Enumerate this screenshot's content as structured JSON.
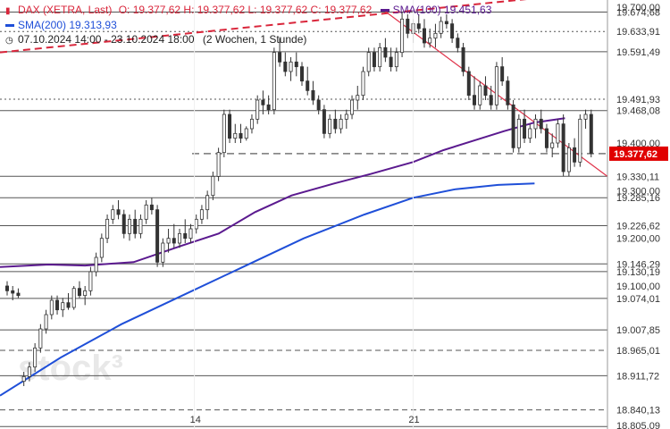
{
  "header": {
    "instrument_line": "DAX (XETRA, Last)",
    "ohlc": "O: 19.377,62  H: 19.377,62  L: 19.377,62  C: 19.377,62",
    "sma100_label": "SMA(100)",
    "sma100_value": "19.451,63",
    "sma200_label": "SMA(200)",
    "sma200_value": "19.313,93",
    "period": "07.10.2024 14:00 - 23.10.2024 18:00",
    "range": "(2 Wochen, 1 Stunde)"
  },
  "colors": {
    "bg": "#ffffff",
    "candle": "#333333",
    "sma100": "#5b1a8f",
    "sma200": "#1f4fd8",
    "trend_dashed": "#d9263b",
    "trend_solid": "#e0334a",
    "current_price": "#e00000",
    "level_line": "#555555"
  },
  "chart_data": {
    "type": "candlestick",
    "ylim": [
      18800,
      19700
    ],
    "x_ticks": [
      "14",
      "21"
    ],
    "y_axis_labels": [
      "19.700,00",
      "19.674,68",
      "19.633,91",
      "19.591,49",
      "19.491,93",
      "19.468,08",
      "19.400,00",
      "19.377,62",
      "19.330,11",
      "19.300,00",
      "19.285,16",
      "19.226,62",
      "19.200,00",
      "19.146,29",
      "19.130,19",
      "19.100,00",
      "19.074,01",
      "19.007,85",
      "18.965,01",
      "18.911,72",
      "18.840,13",
      "18.805,09"
    ],
    "current_price": 19377.62,
    "current_price_label": "19.377,62",
    "levels": [
      {
        "value": 19674.68,
        "style": "solid"
      },
      {
        "value": 19633.91,
        "style": "dotted"
      },
      {
        "value": 19591.49,
        "style": "solid"
      },
      {
        "value": 19491.93,
        "style": "dotted"
      },
      {
        "value": 19468.08,
        "style": "solid"
      },
      {
        "value": 19330.11,
        "style": "solid"
      },
      {
        "value": 19285.16,
        "style": "solid"
      },
      {
        "value": 19226.62,
        "style": "solid"
      },
      {
        "value": 19146.29,
        "style": "solid"
      },
      {
        "value": 19130.19,
        "style": "solid"
      },
      {
        "value": 19074.01,
        "style": "solid"
      },
      {
        "value": 19007.85,
        "style": "solid"
      },
      {
        "value": 18965.01,
        "style": "dashed"
      },
      {
        "value": 18911.72,
        "style": "solid"
      },
      {
        "value": 18840.13,
        "style": "dashed"
      },
      {
        "value": 18805.09,
        "style": "solid"
      }
    ],
    "candles": [
      [
        19100,
        19110,
        19080,
        19090
      ],
      [
        19090,
        19100,
        19070,
        19085
      ],
      [
        19085,
        19095,
        19075,
        19080
      ],
      [
        18900,
        18920,
        18890,
        18910
      ],
      [
        18910,
        18940,
        18900,
        18930
      ],
      [
        18930,
        18980,
        18920,
        18970
      ],
      [
        18970,
        19020,
        18960,
        19010
      ],
      [
        19010,
        19050,
        19000,
        19040
      ],
      [
        19040,
        19080,
        19030,
        19070
      ],
      [
        19070,
        19080,
        19040,
        19050
      ],
      [
        19050,
        19075,
        19035,
        19065
      ],
      [
        19065,
        19085,
        19050,
        19055
      ],
      [
        19055,
        19100,
        19050,
        19095
      ],
      [
        19095,
        19110,
        19075,
        19080
      ],
      [
        19080,
        19100,
        19060,
        19090
      ],
      [
        19090,
        19140,
        19080,
        19130
      ],
      [
        19130,
        19170,
        19120,
        19160
      ],
      [
        19160,
        19210,
        19150,
        19200
      ],
      [
        19200,
        19250,
        19190,
        19240
      ],
      [
        19240,
        19270,
        19230,
        19260
      ],
      [
        19260,
        19280,
        19240,
        19250
      ],
      [
        19250,
        19260,
        19200,
        19210
      ],
      [
        19210,
        19250,
        19195,
        19240
      ],
      [
        19240,
        19260,
        19200,
        19210
      ],
      [
        19210,
        19250,
        19200,
        19240
      ],
      [
        19240,
        19280,
        19230,
        19270
      ],
      [
        19270,
        19285,
        19250,
        19260
      ],
      [
        19260,
        19270,
        19140,
        19150
      ],
      [
        19150,
        19200,
        19140,
        19190
      ],
      [
        19190,
        19220,
        19170,
        19200
      ],
      [
        19200,
        19230,
        19180,
        19190
      ],
      [
        19190,
        19220,
        19180,
        19210
      ],
      [
        19210,
        19240,
        19190,
        19200
      ],
      [
        19200,
        19230,
        19190,
        19220
      ],
      [
        19220,
        19250,
        19210,
        19240
      ],
      [
        19240,
        19270,
        19230,
        19260
      ],
      [
        19260,
        19300,
        19240,
        19290
      ],
      [
        19290,
        19340,
        19280,
        19330
      ],
      [
        19330,
        19390,
        19320,
        19380
      ],
      [
        19380,
        19470,
        19370,
        19460
      ],
      [
        19460,
        19470,
        19400,
        19410
      ],
      [
        19410,
        19440,
        19400,
        19420
      ],
      [
        19420,
        19440,
        19400,
        19410
      ],
      [
        19410,
        19435,
        19405,
        19430
      ],
      [
        19430,
        19460,
        19420,
        19450
      ],
      [
        19450,
        19500,
        19440,
        19490
      ],
      [
        19490,
        19510,
        19460,
        19480
      ],
      [
        19480,
        19500,
        19460,
        19470
      ],
      [
        19470,
        19600,
        19460,
        19590
      ],
      [
        19590,
        19620,
        19560,
        19570
      ],
      [
        19570,
        19590,
        19540,
        19550
      ],
      [
        19550,
        19580,
        19530,
        19570
      ],
      [
        19570,
        19590,
        19540,
        19560
      ],
      [
        19560,
        19570,
        19520,
        19530
      ],
      [
        19530,
        19560,
        19500,
        19510
      ],
      [
        19510,
        19530,
        19480,
        19490
      ],
      [
        19490,
        19500,
        19460,
        19470
      ],
      [
        19470,
        19480,
        19410,
        19420
      ],
      [
        19420,
        19460,
        19410,
        19450
      ],
      [
        19450,
        19470,
        19420,
        19430
      ],
      [
        19430,
        19460,
        19420,
        19450
      ],
      [
        19450,
        19470,
        19430,
        19460
      ],
      [
        19460,
        19500,
        19450,
        19490
      ],
      [
        19490,
        19520,
        19470,
        19500
      ],
      [
        19500,
        19560,
        19490,
        19550
      ],
      [
        19550,
        19600,
        19540,
        19590
      ],
      [
        19590,
        19600,
        19550,
        19560
      ],
      [
        19560,
        19610,
        19550,
        19600
      ],
      [
        19600,
        19620,
        19570,
        19580
      ],
      [
        19580,
        19600,
        19550,
        19560
      ],
      [
        19560,
        19600,
        19550,
        19590
      ],
      [
        19590,
        19675,
        19580,
        19660
      ],
      [
        19660,
        19670,
        19620,
        19630
      ],
      [
        19630,
        19660,
        19610,
        19650
      ],
      [
        19650,
        19670,
        19630,
        19640
      ],
      [
        19640,
        19660,
        19600,
        19610
      ],
      [
        19610,
        19640,
        19600,
        19620
      ],
      [
        19620,
        19650,
        19600,
        19630
      ],
      [
        19630,
        19665,
        19620,
        19655
      ],
      [
        19655,
        19670,
        19640,
        19650
      ],
      [
        19650,
        19660,
        19610,
        19620
      ],
      [
        19620,
        19630,
        19590,
        19600
      ],
      [
        19600,
        19610,
        19540,
        19550
      ],
      [
        19550,
        19560,
        19490,
        19500
      ],
      [
        19500,
        19540,
        19470,
        19480
      ],
      [
        19480,
        19530,
        19470,
        19520
      ],
      [
        19520,
        19540,
        19490,
        19500
      ],
      [
        19500,
        19520,
        19470,
        19480
      ],
      [
        19480,
        19570,
        19470,
        19560
      ],
      [
        19560,
        19580,
        19520,
        19530
      ],
      [
        19530,
        19540,
        19470,
        19480
      ],
      [
        19480,
        19490,
        19380,
        19390
      ],
      [
        19390,
        19460,
        19380,
        19450
      ],
      [
        19450,
        19470,
        19400,
        19410
      ],
      [
        19410,
        19440,
        19400,
        19430
      ],
      [
        19430,
        19460,
        19410,
        19450
      ],
      [
        19450,
        19470,
        19420,
        19430
      ],
      [
        19430,
        19440,
        19380,
        19390
      ],
      [
        19390,
        19420,
        19370,
        19400
      ],
      [
        19400,
        19450,
        19390,
        19440
      ],
      [
        19440,
        19460,
        19330,
        19340
      ],
      [
        19340,
        19400,
        19330,
        19390
      ],
      [
        19390,
        19410,
        19350,
        19360
      ],
      [
        19360,
        19460,
        19350,
        19450
      ],
      [
        19450,
        19470,
        19430,
        19460
      ],
      [
        19460,
        19470,
        19370,
        19378
      ]
    ],
    "sma100": [
      [
        0,
        19140
      ],
      [
        0.08,
        19145
      ],
      [
        0.14,
        19143
      ],
      [
        0.22,
        19150
      ],
      [
        0.3,
        19185
      ],
      [
        0.36,
        19210
      ],
      [
        0.42,
        19255
      ],
      [
        0.48,
        19290
      ],
      [
        0.55,
        19315
      ],
      [
        0.61,
        19335
      ],
      [
        0.68,
        19360
      ],
      [
        0.73,
        19385
      ],
      [
        0.78,
        19405
      ],
      [
        0.83,
        19425
      ],
      [
        0.88,
        19443
      ],
      [
        0.93,
        19452
      ]
    ],
    "sma200": [
      [
        0,
        18870
      ],
      [
        0.1,
        18950
      ],
      [
        0.2,
        19020
      ],
      [
        0.3,
        19080
      ],
      [
        0.4,
        19140
      ],
      [
        0.5,
        19200
      ],
      [
        0.6,
        19250
      ],
      [
        0.68,
        19285
      ],
      [
        0.75,
        19303
      ],
      [
        0.82,
        19312
      ],
      [
        0.88,
        19315
      ]
    ],
    "trend_dashed": [
      [
        0,
        19590
      ],
      [
        0.93,
        19710
      ]
    ],
    "trend_solid": [
      [
        0.63,
        19680
      ],
      [
        1,
        19330
      ]
    ],
    "watermark": "stock³"
  }
}
